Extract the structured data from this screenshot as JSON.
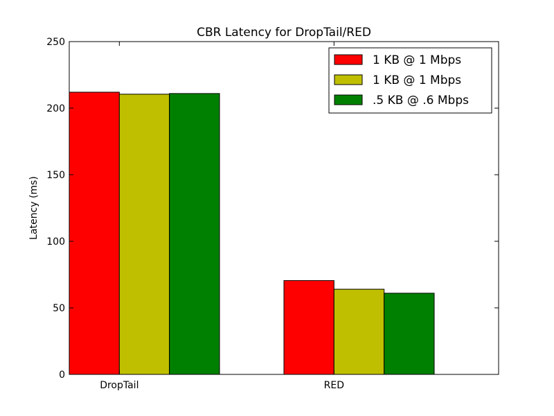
{
  "chart_data": {
    "type": "bar",
    "title": "CBR Latency for DropTail/RED",
    "xlabel": "",
    "ylabel": "Latency (ms)",
    "ylim": [
      0,
      250
    ],
    "yticks": [
      0,
      50,
      100,
      150,
      200,
      250
    ],
    "categories": [
      "DropTail",
      "RED"
    ],
    "series": [
      {
        "name": "1 KB @ 1 Mbps",
        "color": "#ff0000",
        "values": [
          212,
          70.5
        ]
      },
      {
        "name": "1 KB @ 1 Mbps",
        "color": "#bfbf00",
        "values": [
          210.5,
          64
        ]
      },
      {
        "name": ".5 KB @ .6 Mbps",
        "color": "#008000",
        "values": [
          211,
          61
        ]
      }
    ],
    "legend": "top-right",
    "grid": false
  }
}
